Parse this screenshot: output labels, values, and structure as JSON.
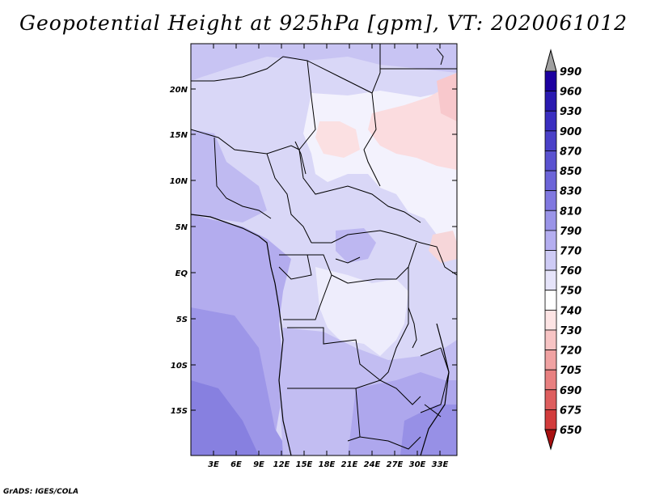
{
  "title": "Geopotential Height at 925hPa [gpm], VT: 2020061012",
  "credit": "GrADS: IGES/COLA",
  "map": {
    "lat_labels": [
      "20N",
      "15N",
      "10N",
      "5N",
      "EQ",
      "5S",
      "10S",
      "15S"
    ],
    "lon_labels": [
      "3E",
      "6E",
      "9E",
      "12E",
      "15E",
      "18E",
      "21E",
      "24E",
      "27E",
      "30E",
      "33E"
    ]
  },
  "colorbar": {
    "levels": [
      "990",
      "960",
      "930",
      "900",
      "870",
      "850",
      "830",
      "810",
      "790",
      "770",
      "760",
      "750",
      "740",
      "730",
      "720",
      "705",
      "690",
      "675",
      "650"
    ],
    "colors": [
      "#1c00a0",
      "#2a1ab0",
      "#3a2ec0",
      "#4a40c8",
      "#5a52d0",
      "#6c64d8",
      "#8078e0",
      "#9a94e8",
      "#b4aef0",
      "#cecbf5",
      "#e6e4fa",
      "#ffffff",
      "#fde4e4",
      "#f7c4c4",
      "#f0a2a2",
      "#e88080",
      "#de5e5e",
      "#d23c3c",
      "#c22020",
      "#a81010"
    ],
    "over_arrow_color": "#a0a0a0"
  }
}
